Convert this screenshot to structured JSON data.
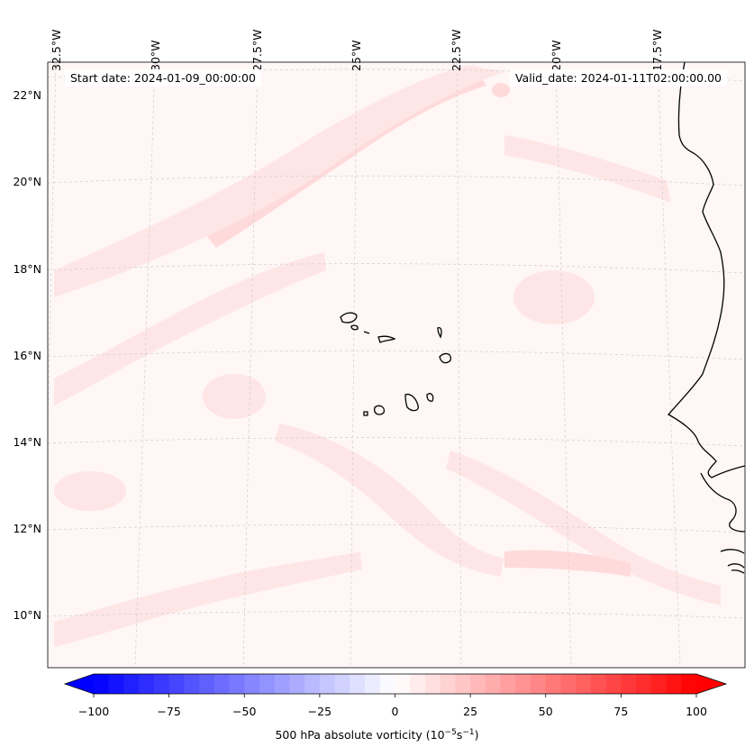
{
  "header": {
    "start_date": "Start date: 2024-01-09_00:00:00",
    "valid_date": "Valid_date: 2024-01-11T02:00:00.00"
  },
  "longitude_labels": [
    "32.5°W",
    "30°W",
    "27.5°W",
    "25°W",
    "22.5°W",
    "20°W",
    "17.5°W"
  ],
  "latitude_labels": [
    "22°N",
    "20°N",
    "18°N",
    "16°N",
    "14°N",
    "12°N",
    "10°N"
  ],
  "colorbar": {
    "label_prefix": "500 hPa absolute vorticity (10",
    "label_exp1": "−5",
    "label_mid": "s",
    "label_exp2": "−1",
    "label_suffix": ")",
    "ticks": [
      "−100",
      "−75",
      "−50",
      "−25",
      "0",
      "25",
      "50",
      "75",
      "100"
    ],
    "min": -100,
    "max": 100,
    "low_color": "#0000ff",
    "mid_color": "#ffffff",
    "high_color": "#ff0000"
  },
  "field": {
    "background_color": "#fff6f6",
    "band_color": "#ffe6e6",
    "band_strong_color": "#ffdada",
    "coast_color": "#000000",
    "gridline_color": "#c8c8c8"
  }
}
